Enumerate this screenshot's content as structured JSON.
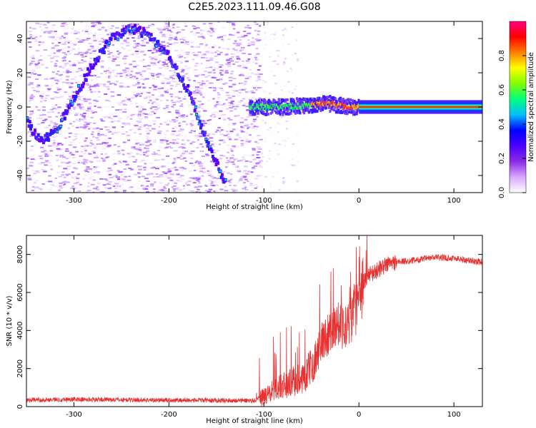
{
  "title": "C2E5.2023.111.09.46.G08",
  "chart_data": [
    {
      "type": "heatmap",
      "title": "C2E5.2023.111.09.46.G08",
      "xlabel": "Height of straight line (km)",
      "ylabel": "Frequency (Hz)",
      "xlim": [
        -350,
        130
      ],
      "ylim": [
        -50,
        50
      ],
      "xticks": [
        -300,
        -200,
        -100,
        0,
        100
      ],
      "yticks": [
        -40,
        -20,
        0,
        20,
        40
      ],
      "grid": false,
      "colorbar": {
        "label": "Normalized spectral amplitude",
        "range": [
          0,
          1
        ],
        "ticks": [
          0.0,
          0.2,
          0.4,
          0.6,
          0.8
        ],
        "colors": [
          "#ffffff",
          "#d9a8ff",
          "#8a2be2",
          "#4b00ff",
          "#0000ff",
          "#00bfff",
          "#00ff7f",
          "#7fff00",
          "#ffff00",
          "#ff8000",
          "#ff0000",
          "#ff0080"
        ]
      },
      "features": [
        {
          "name": "sinusoidal track",
          "x": [
            -350,
            -335,
            -320,
            -300,
            -280,
            -260,
            -240,
            -220,
            -200,
            -180,
            -160,
            -140
          ],
          "y": [
            -8,
            -20,
            -15,
            5,
            25,
            40,
            46,
            42,
            30,
            10,
            -20,
            -45
          ]
        },
        {
          "name": "central band",
          "x": [
            -115,
            -80,
            -50,
            -30,
            -10,
            0,
            130
          ],
          "y": [
            0,
            0,
            1,
            2,
            0,
            0,
            0
          ]
        }
      ]
    },
    {
      "type": "line",
      "xlabel": "Height of straight line (km)",
      "ylabel": "SNR (10 * v/v)",
      "xlim": [
        -350,
        130
      ],
      "ylim": [
        0,
        9000
      ],
      "xticks": [
        -300,
        -200,
        -100,
        0,
        100
      ],
      "yticks": [
        0,
        2000,
        4000,
        6000,
        8000
      ],
      "grid": false,
      "series": [
        {
          "color": "#e83030",
          "x": [
            -350,
            -300,
            -250,
            -200,
            -150,
            -110,
            -100,
            -85,
            -70,
            -55,
            -45,
            -38,
            -30,
            -20,
            -12,
            -5,
            0,
            5,
            10,
            15,
            20,
            30,
            40,
            60,
            80,
            100,
            120,
            130
          ],
          "y": [
            350,
            380,
            360,
            340,
            330,
            320,
            500,
            1000,
            1300,
            1700,
            2600,
            3500,
            4000,
            4500,
            4000,
            5000,
            5500,
            6500,
            7000,
            7000,
            7200,
            7500,
            7600,
            7700,
            7850,
            7800,
            7650,
            7600
          ]
        }
      ]
    }
  ]
}
